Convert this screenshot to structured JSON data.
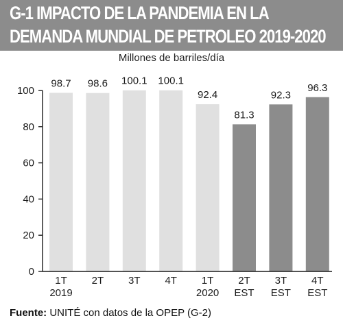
{
  "title_lines": [
    "G-1 IMPACTO DE LA PANDEMIA EN LA",
    "DEMANDA MUNDIAL DE PETROLEO 2019-2020"
  ],
  "source": {
    "label": "Fuente:",
    "text": "UNITÉ con datos de la OPEP (G-2)"
  },
  "colors": {
    "banner": "#8c8c8c",
    "bar_actual": "#e0e0e0",
    "bar_estimate": "#8c8c8c"
  },
  "chart_data": {
    "type": "bar",
    "ylabel": "Millones de barriles/día",
    "ylim": [
      0,
      100
    ],
    "yticks": [
      0,
      20,
      40,
      60,
      80,
      100
    ],
    "grid": false,
    "categories": [
      [
        "1T",
        "2019"
      ],
      [
        "2T",
        ""
      ],
      [
        "3T",
        ""
      ],
      [
        "4T",
        ""
      ],
      [
        "1T",
        "2020"
      ],
      [
        "2T",
        "EST"
      ],
      [
        "3T",
        "EST"
      ],
      [
        "4T",
        "EST"
      ]
    ],
    "values": [
      98.7,
      98.6,
      100.1,
      100.1,
      92.4,
      81.3,
      92.3,
      96.3
    ],
    "value_labels": [
      "98.7",
      "98.6",
      "100.1",
      "100.1",
      "92.4",
      "81.3",
      "92.3",
      "96.3"
    ],
    "estimated": [
      false,
      false,
      false,
      false,
      false,
      true,
      true,
      true
    ]
  }
}
